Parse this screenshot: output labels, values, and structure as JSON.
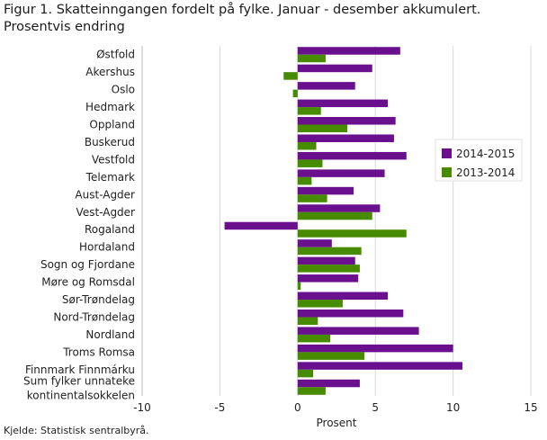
{
  "chart_data": {
    "type": "bar",
    "orientation": "horizontal",
    "title": "Figur 1. Skatteinngangen fordelt på fylke. Januar - desember akkumulert. Prosentvis endring",
    "xlabel": "Prosent",
    "ylabel": "",
    "xlim": [
      -10,
      15
    ],
    "xticks": [
      -10,
      -5,
      0,
      5,
      10,
      15
    ],
    "grid": true,
    "legend_position": "right",
    "categories": [
      "Østfold",
      "Akershus",
      "Oslo",
      "Hedmark",
      "Oppland",
      "Buskerud",
      "Vestfold",
      "Telemark",
      "Aust-Agder",
      "Vest-Agder",
      "Rogaland",
      "Hordaland",
      "Sogn og Fjordane",
      "Møre og Romsdal",
      "Sør-Trøndelag",
      "Nord-Trøndelag",
      "Nordland",
      "Troms Romsa",
      "Finnmark Finnmárku",
      "Sum fylker unnateke kontinentalsokkelen"
    ],
    "series": [
      {
        "name": "2014-2015",
        "color": "#6a0f8e",
        "values": [
          6.6,
          4.8,
          3.7,
          5.8,
          6.3,
          6.2,
          7.0,
          5.6,
          3.6,
          5.3,
          -4.7,
          2.2,
          3.7,
          3.9,
          5.8,
          6.8,
          7.8,
          10.0,
          10.6,
          4.0
        ]
      },
      {
        "name": "2013-2014",
        "color": "#468b00",
        "values": [
          1.8,
          -0.9,
          -0.3,
          1.5,
          3.2,
          1.2,
          1.6,
          0.9,
          1.9,
          4.8,
          7.0,
          4.1,
          4.0,
          0.2,
          2.9,
          1.3,
          2.1,
          4.3,
          1.0,
          1.8
        ]
      }
    ]
  },
  "source": "Kjelde: Statistisk sentralbyrå."
}
